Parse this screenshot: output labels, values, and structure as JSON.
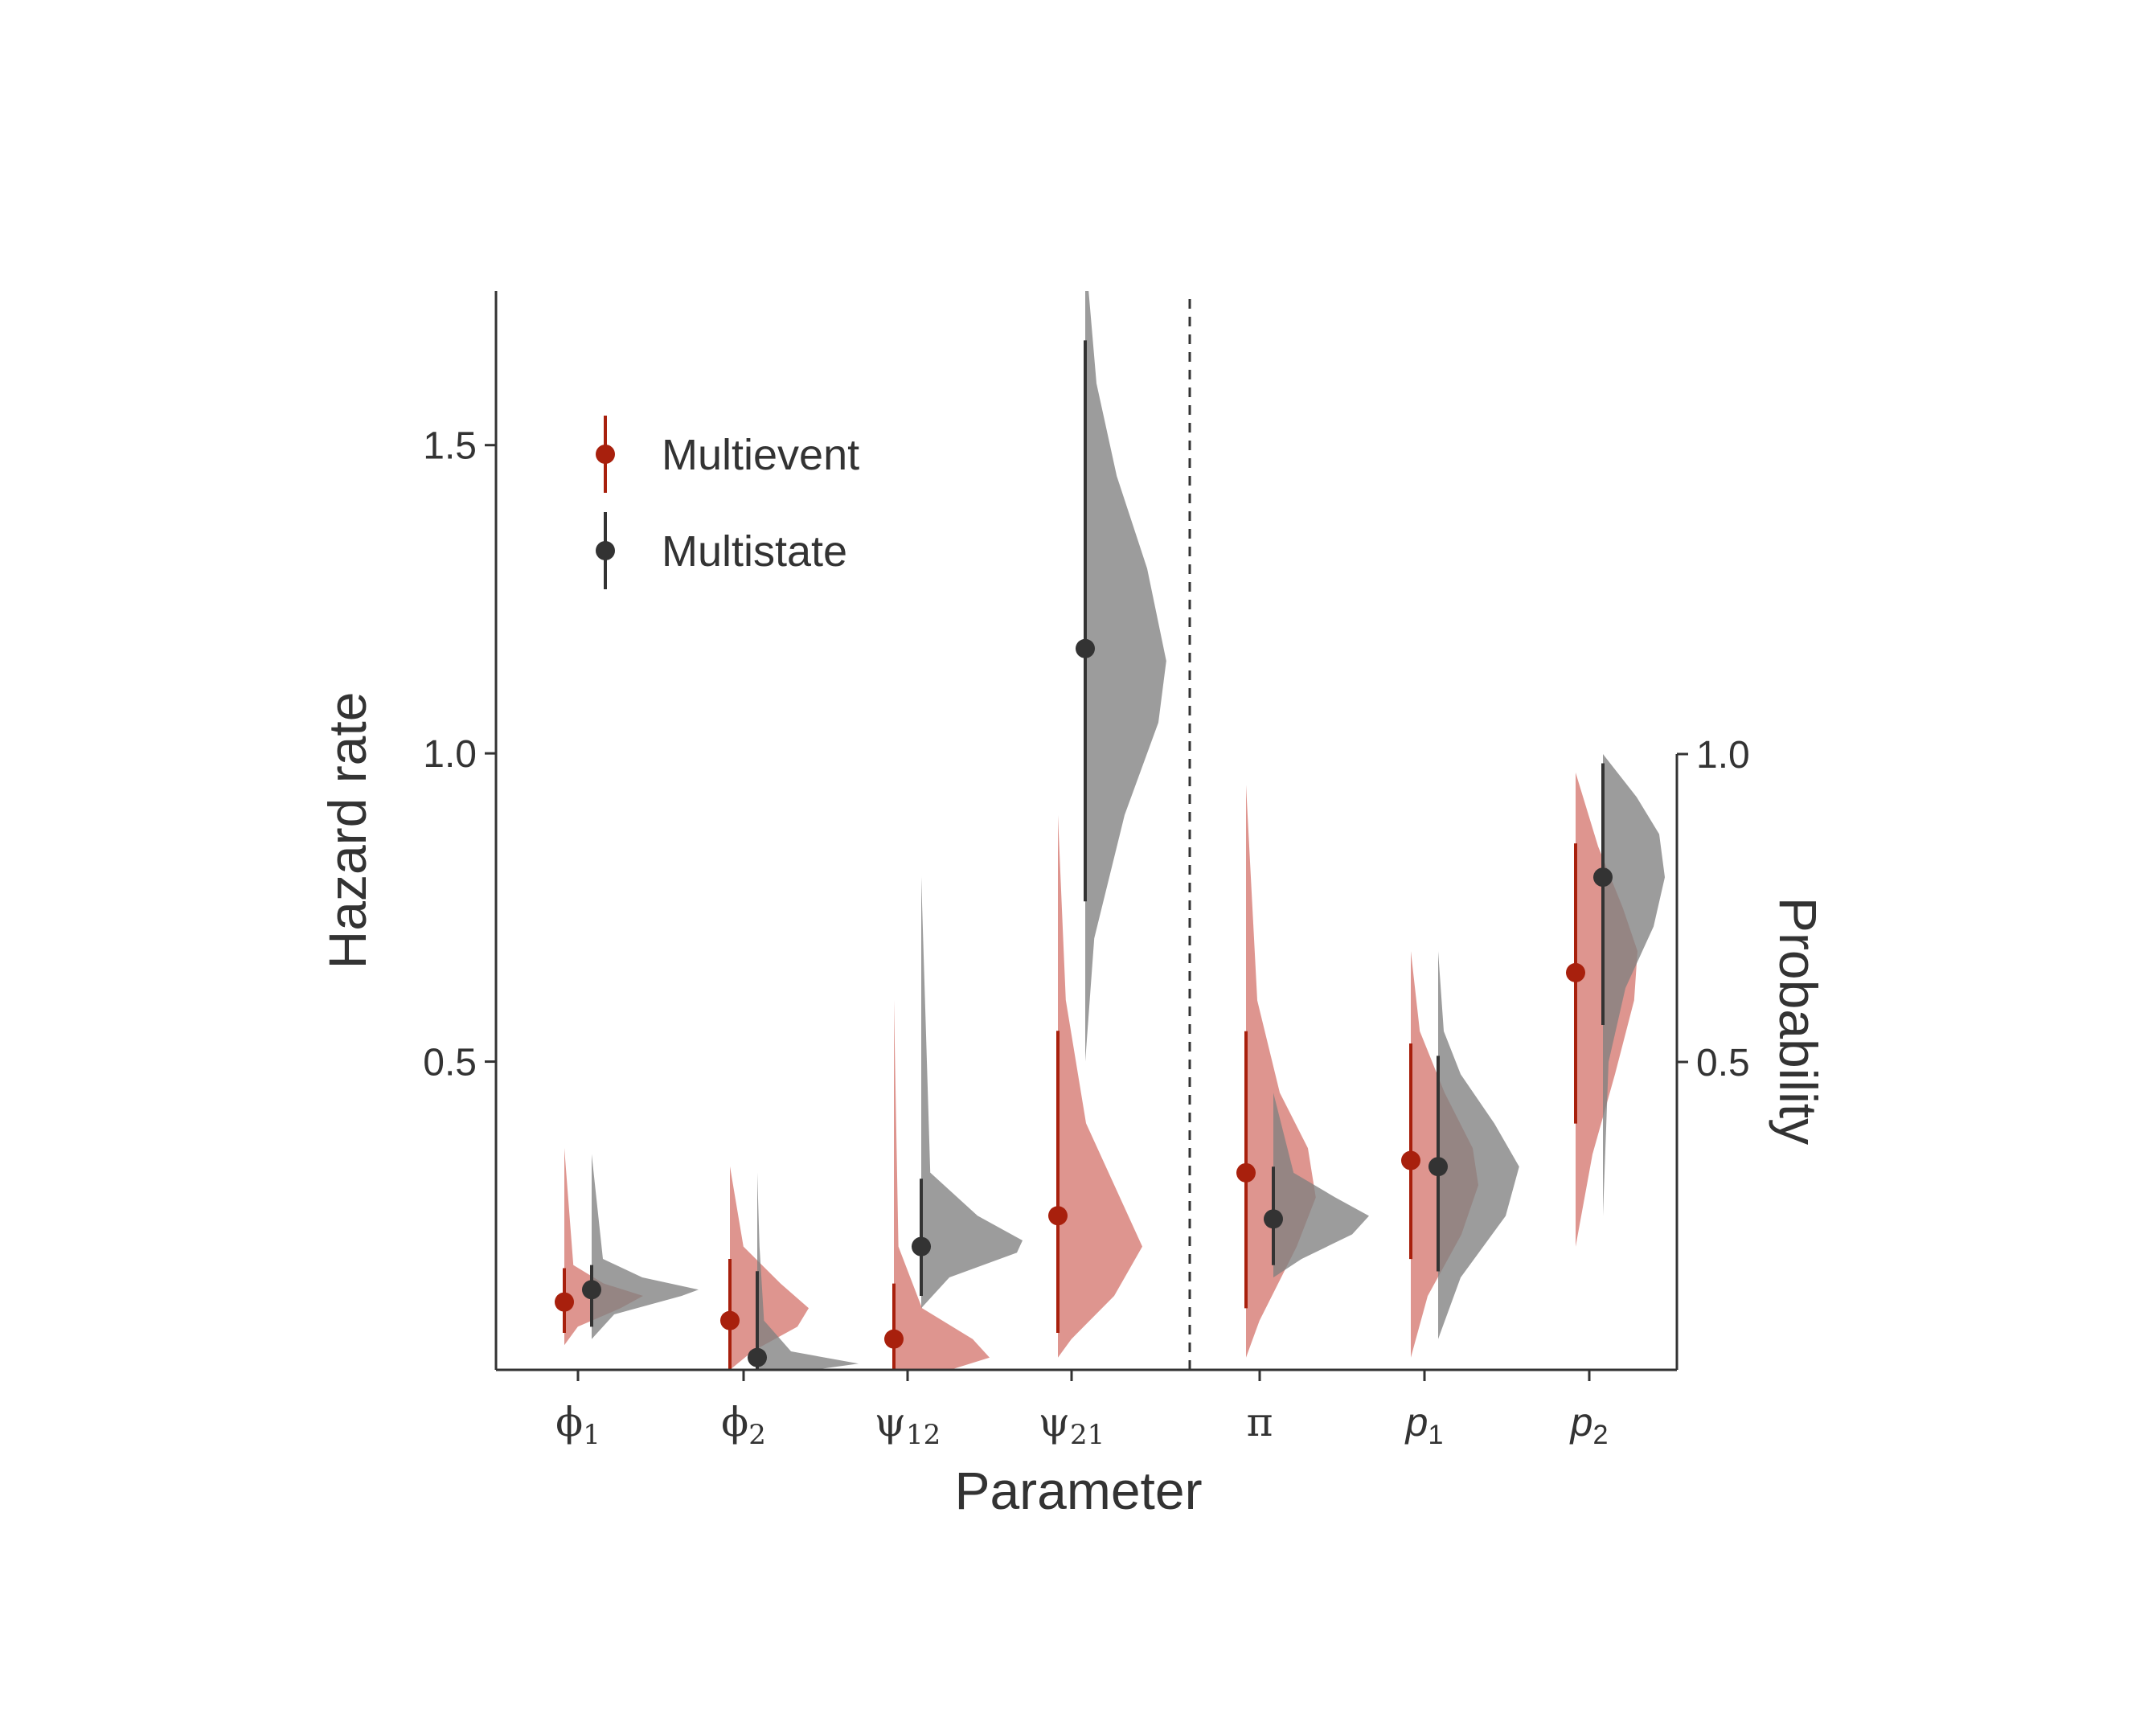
{
  "chart_data": {
    "type": "half-violin with point-intervals",
    "xlabel": "Parameter",
    "ylabel_left": "Hazard rate",
    "ylabel_right": "Probability",
    "left_axis": {
      "range": [
        0,
        1.75
      ],
      "ticks": [
        0.5,
        1.0,
        1.5
      ],
      "tick_labels": [
        "0.5",
        "1.0",
        "1.5"
      ]
    },
    "right_axis": {
      "range": [
        0,
        1.0
      ],
      "ticks": [
        0.5,
        1.0
      ],
      "tick_labels": [
        "0.5",
        "1.0"
      ]
    },
    "divider_after": "ψ21",
    "legend": {
      "placement": "top-left",
      "entries": [
        {
          "label": "Multievent",
          "color": "#a8200d"
        },
        {
          "label": "Multistate",
          "color": "#333333"
        }
      ]
    },
    "colors": {
      "multievent_point": "#a8200d",
      "multievent_fill": "#c9544a",
      "multistate_point": "#333333",
      "multistate_fill": "#808080"
    },
    "parameters": [
      {
        "symbol": "ϕ",
        "subscript": "1",
        "italic": false,
        "axis": "hazard",
        "multievent": {
          "estimate": 0.11,
          "interval": [
            0.06,
            0.165
          ],
          "density": [
            [
              0.04,
              0
            ],
            [
              0.07,
              0.12
            ],
            [
              0.1,
              0.5
            ],
            [
              0.12,
              0.7
            ],
            [
              0.14,
              0.35
            ],
            [
              0.17,
              0.08
            ],
            [
              0.36,
              0
            ]
          ]
        },
        "multistate": {
          "estimate": 0.13,
          "interval": [
            0.07,
            0.17
          ],
          "density": [
            [
              0.05,
              0
            ],
            [
              0.09,
              0.2
            ],
            [
              0.12,
              0.8
            ],
            [
              0.13,
              0.95
            ],
            [
              0.15,
              0.45
            ],
            [
              0.18,
              0.1
            ],
            [
              0.35,
              0
            ]
          ]
        }
      },
      {
        "symbol": "ϕ",
        "subscript": "2",
        "italic": false,
        "axis": "hazard",
        "multievent": {
          "estimate": 0.08,
          "interval": [
            0,
            0.18
          ],
          "density": [
            [
              0,
              0
            ],
            [
              0.03,
              0.2
            ],
            [
              0.07,
              0.6
            ],
            [
              0.1,
              0.7
            ],
            [
              0.14,
              0.45
            ],
            [
              0.2,
              0.12
            ],
            [
              0.33,
              0
            ]
          ]
        },
        "multistate": {
          "estimate": 0.02,
          "interval": [
            0,
            0.16
          ],
          "density": [
            [
              0,
              0.5
            ],
            [
              0.01,
              0.9
            ],
            [
              0.03,
              0.3
            ],
            [
              0.08,
              0.06
            ],
            [
              0.2,
              0.02
            ],
            [
              0.32,
              0
            ]
          ]
        }
      },
      {
        "symbol": "ψ",
        "subscript": "12",
        "italic": false,
        "axis": "hazard",
        "multievent": {
          "estimate": 0.05,
          "interval": [
            0,
            0.14
          ],
          "density": [
            [
              0,
              0.5
            ],
            [
              0.02,
              0.85
            ],
            [
              0.05,
              0.7
            ],
            [
              0.1,
              0.25
            ],
            [
              0.2,
              0.04
            ],
            [
              0.6,
              0
            ]
          ]
        },
        "multistate": {
          "estimate": 0.2,
          "interval": [
            0.12,
            0.31
          ],
          "density": [
            [
              0.1,
              0
            ],
            [
              0.15,
              0.25
            ],
            [
              0.19,
              0.85
            ],
            [
              0.21,
              0.9
            ],
            [
              0.25,
              0.5
            ],
            [
              0.32,
              0.08
            ],
            [
              0.8,
              0
            ]
          ]
        }
      },
      {
        "symbol": "ψ",
        "subscript": "21",
        "italic": false,
        "axis": "hazard",
        "multievent": {
          "estimate": 0.25,
          "interval": [
            0.06,
            0.55
          ],
          "density": [
            [
              0.02,
              0
            ],
            [
              0.05,
              0.12
            ],
            [
              0.12,
              0.5
            ],
            [
              0.2,
              0.75
            ],
            [
              0.28,
              0.55
            ],
            [
              0.4,
              0.25
            ],
            [
              0.6,
              0.07
            ],
            [
              0.9,
              0
            ]
          ]
        },
        "multistate": {
          "estimate": 1.17,
          "interval": [
            0.76,
            1.67
          ],
          "density": [
            [
              0.5,
              0
            ],
            [
              0.7,
              0.08
            ],
            [
              0.9,
              0.35
            ],
            [
              1.05,
              0.65
            ],
            [
              1.15,
              0.72
            ],
            [
              1.3,
              0.55
            ],
            [
              1.45,
              0.28
            ],
            [
              1.6,
              0.1
            ],
            [
              1.75,
              0.03
            ]
          ]
        }
      },
      {
        "symbol": "π",
        "subscript": "",
        "italic": false,
        "axis": "probability",
        "multievent": {
          "estimate": 0.32,
          "interval": [
            0.1,
            0.55
          ],
          "density": [
            [
              0.02,
              0
            ],
            [
              0.08,
              0.12
            ],
            [
              0.2,
              0.45
            ],
            [
              0.28,
              0.62
            ],
            [
              0.36,
              0.55
            ],
            [
              0.45,
              0.3
            ],
            [
              0.6,
              0.1
            ],
            [
              0.95,
              0
            ]
          ]
        },
        "multistate": {
          "estimate": 0.245,
          "interval": [
            0.17,
            0.33
          ],
          "density": [
            [
              0.15,
              0
            ],
            [
              0.18,
              0.25
            ],
            [
              0.22,
              0.7
            ],
            [
              0.25,
              0.85
            ],
            [
              0.28,
              0.55
            ],
            [
              0.32,
              0.18
            ],
            [
              0.45,
              0
            ]
          ]
        }
      },
      {
        "symbol": "p",
        "subscript": "1",
        "italic": true,
        "axis": "probability",
        "multievent": {
          "estimate": 0.34,
          "interval": [
            0.18,
            0.53
          ],
          "density": [
            [
              0.02,
              0
            ],
            [
              0.12,
              0.15
            ],
            [
              0.22,
              0.45
            ],
            [
              0.3,
              0.6
            ],
            [
              0.36,
              0.55
            ],
            [
              0.45,
              0.3
            ],
            [
              0.55,
              0.08
            ],
            [
              0.68,
              0
            ]
          ]
        },
        "multistate": {
          "estimate": 0.33,
          "interval": [
            0.16,
            0.51
          ],
          "density": [
            [
              0.05,
              0
            ],
            [
              0.15,
              0.2
            ],
            [
              0.25,
              0.6
            ],
            [
              0.33,
              0.72
            ],
            [
              0.4,
              0.5
            ],
            [
              0.48,
              0.2
            ],
            [
              0.55,
              0.05
            ],
            [
              0.68,
              0
            ]
          ]
        }
      },
      {
        "symbol": "p",
        "subscript": "2",
        "italic": true,
        "axis": "probability",
        "multievent": {
          "estimate": 0.645,
          "interval": [
            0.4,
            0.855
          ],
          "density": [
            [
              0.2,
              0
            ],
            [
              0.35,
              0.15
            ],
            [
              0.48,
              0.35
            ],
            [
              0.6,
              0.52
            ],
            [
              0.68,
              0.55
            ],
            [
              0.75,
              0.42
            ],
            [
              0.85,
              0.2
            ],
            [
              0.97,
              0
            ]
          ]
        },
        "multistate": {
          "estimate": 0.8,
          "interval": [
            0.56,
            0.985
          ],
          "density": [
            [
              0.25,
              0
            ],
            [
              0.5,
              0.05
            ],
            [
              0.62,
              0.2
            ],
            [
              0.72,
              0.45
            ],
            [
              0.8,
              0.55
            ],
            [
              0.87,
              0.5
            ],
            [
              0.93,
              0.3
            ],
            [
              1.0,
              0
            ]
          ]
        }
      }
    ]
  }
}
